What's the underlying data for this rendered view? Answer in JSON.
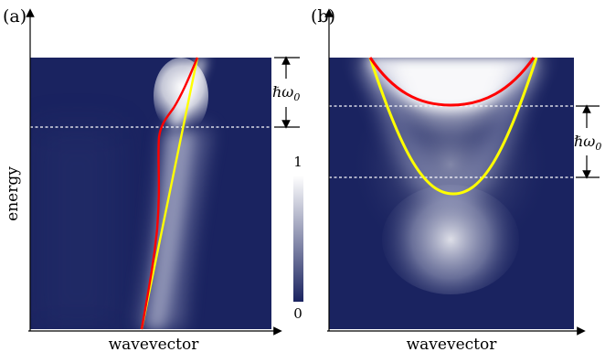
{
  "panels": [
    {
      "label": "(a)",
      "xlabel": "wavevector",
      "ylabel": "energy",
      "annotation": "ℏω",
      "annotation_sub": "0"
    },
    {
      "label": "(b)",
      "xlabel": "wavevector",
      "annotation": "ℏω",
      "annotation_sub": "0"
    }
  ],
  "colorbar": {
    "max_label": "1",
    "min_label": "0",
    "colors": {
      "low": "#1a2360",
      "high": "#ffffff"
    }
  },
  "colors": {
    "background": "#1a2360",
    "bare_dispersion": "#ffff00",
    "dressed_dispersion": "#ff0000",
    "guide_lines": "#ffffff"
  }
}
